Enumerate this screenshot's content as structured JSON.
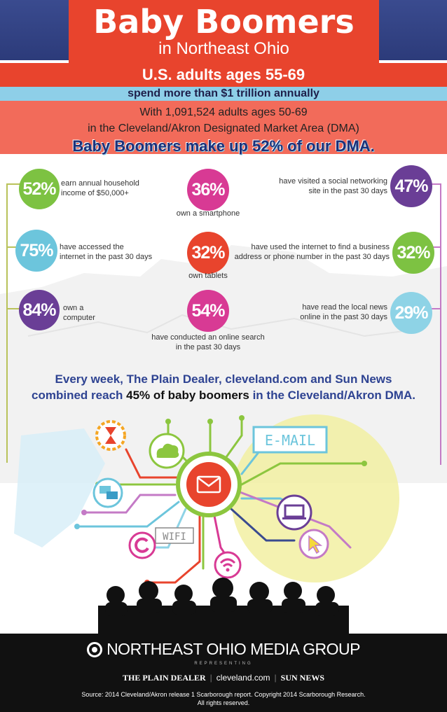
{
  "header": {
    "title": "Baby Boomers",
    "subtitle": "in Northeast Ohio",
    "adults_line": "U.S. adults ages 55-69",
    "spend_line": "spend more than $1 trillion annually",
    "with_line": "With 1,091,524 adults ages 50-69",
    "dma_line": "in the Cleveland/Akron Designated Market Area (DMA)",
    "makeup_line": "Baby Boomers make up 52% of our DMA."
  },
  "stats": {
    "left": [
      {
        "value": "52%",
        "text_1": "earn annual household",
        "text_2": "income of $50,000+",
        "color": "#7dc242"
      },
      {
        "value": "75%",
        "text_1": "have accessed the",
        "text_2": "internet in the past 30 days",
        "color": "#6cc5dc"
      },
      {
        "value": "84%",
        "text_1": "own a",
        "text_2": "computer",
        "color": "#6a3e96"
      }
    ],
    "middle": [
      {
        "value": "36%",
        "text_1": "own a smartphone",
        "text_2": "",
        "color": "#d83a94"
      },
      {
        "value": "32%",
        "text_1": "own tablets",
        "text_2": "",
        "color": "#e8442d"
      },
      {
        "value": "54%",
        "text_1": "have conducted an online search",
        "text_2": "in the past 30 days",
        "color": "#d83a94"
      }
    ],
    "right": [
      {
        "value": "47%",
        "text_1": "have visited a social networking",
        "text_2": "site in the past 30 days",
        "color": "#6a3e96"
      },
      {
        "value": "32%",
        "text_1": "have used the internet to find a business",
        "text_2": "address or phone number in the past 30 days",
        "color": "#7dc242"
      },
      {
        "value": "29%",
        "text_1": "have read the local news",
        "text_2": "online in the past 30 days",
        "color": "#8ed3e6"
      }
    ]
  },
  "reach": {
    "line_1": "Every week, The Plain Dealer, cleveland.com and Sun News",
    "line_2_a": "combined reach ",
    "line_2_b": "45% of baby boomers",
    "line_2_c": " in the Cleveland/Akron DMA."
  },
  "art": {
    "email_label": "E-MAIL",
    "wifi_label": "WIFI",
    "icons": [
      "hourglass-icon",
      "cloud-icon",
      "envelope-icon",
      "chat-icon",
      "laptop-icon",
      "cursor-icon",
      "wifi-icon",
      "refresh-icon"
    ]
  },
  "footer": {
    "brand": "NORTHEAST OHIO MEDIA GROUP",
    "representing": "REPRESENTING",
    "partner_1": "THE PLAIN DEALER",
    "partner_2": "cleveland.com",
    "partner_3": "SUN NEWS",
    "source_1": "Source: 2014 Cleveland/Akron release 1 Scarborough report. Copyright 2014 Scarborough Research.",
    "source_2": "All rights reserved."
  },
  "colors": {
    "navy": "#2c3b7a",
    "orange": "#e8442d",
    "light_blue": "#8ecfe8",
    "salmon": "#f26b5a",
    "green": "#7dc242",
    "purple": "#6a3e96",
    "magenta": "#d83a94"
  }
}
